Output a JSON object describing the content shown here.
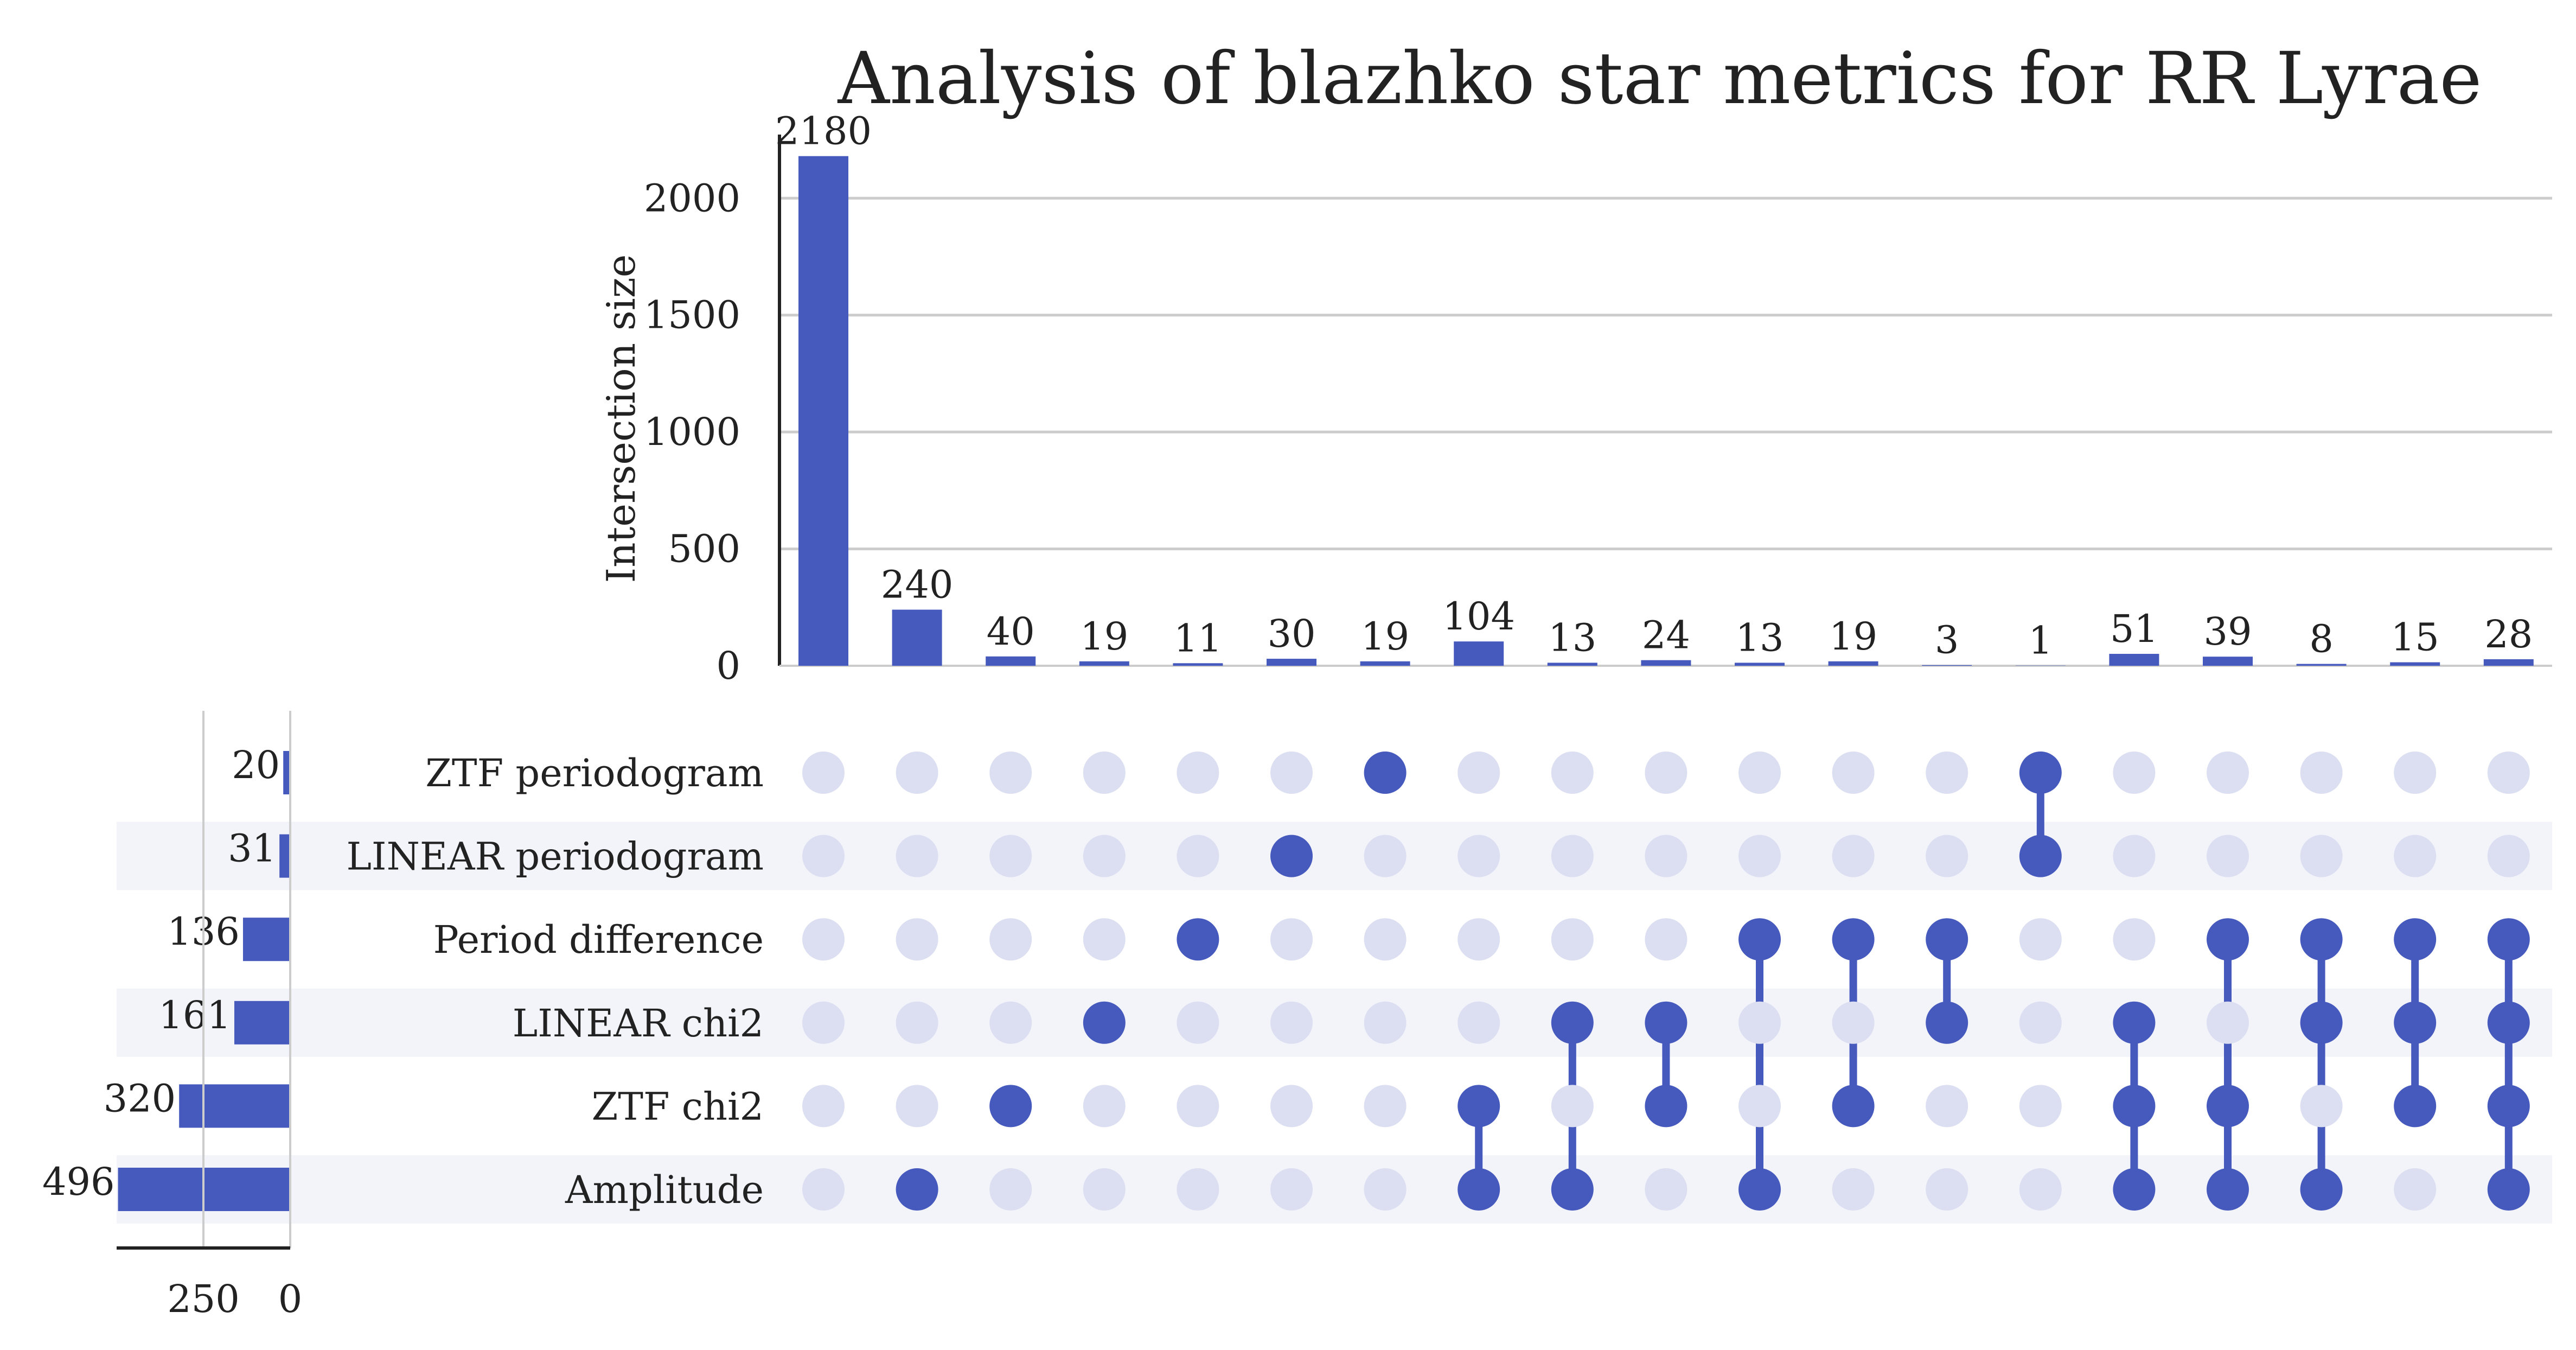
{
  "chart_data": {
    "type": "bar",
    "subtype": "upset",
    "title": "Analysis of blazhko star metrics for RR Lyrae",
    "intersections": {
      "ylabel": "Intersection size",
      "ylim": [
        0,
        2300
      ],
      "yticks": [
        0,
        500,
        1000,
        1500,
        2000
      ],
      "grid": true,
      "values": [
        2180,
        240,
        40,
        19,
        11,
        30,
        19,
        104,
        13,
        24,
        13,
        19,
        3,
        1,
        51,
        39,
        8,
        15,
        28
      ],
      "sets": [
        [],
        [
          "Amplitude"
        ],
        [
          "ZTF chi2"
        ],
        [
          "LINEAR chi2"
        ],
        [
          "Period difference"
        ],
        [
          "LINEAR periodogram"
        ],
        [
          "ZTF periodogram"
        ],
        [
          "ZTF chi2",
          "Amplitude"
        ],
        [
          "LINEAR chi2",
          "Amplitude"
        ],
        [
          "LINEAR chi2",
          "ZTF chi2"
        ],
        [
          "Period difference",
          "Amplitude"
        ],
        [
          "Period difference",
          "ZTF chi2"
        ],
        [
          "Period difference",
          "LINEAR chi2"
        ],
        [
          "ZTF periodogram",
          "LINEAR periodogram"
        ],
        [
          "LINEAR chi2",
          "ZTF chi2",
          "Amplitude"
        ],
        [
          "Period difference",
          "ZTF chi2",
          "Amplitude"
        ],
        [
          "Period difference",
          "LINEAR chi2",
          "Amplitude"
        ],
        [
          "Period difference",
          "LINEAR chi2",
          "ZTF chi2"
        ],
        [
          "Period difference",
          "LINEAR chi2",
          "ZTF chi2",
          "Amplitude"
        ]
      ]
    },
    "set_sizes": {
      "names": [
        "ZTF periodogram",
        "LINEAR periodogram",
        "Period difference",
        "LINEAR chi2",
        "ZTF chi2",
        "Amplitude"
      ],
      "values": [
        20,
        31,
        136,
        161,
        320,
        496
      ],
      "xticks": [
        250,
        0
      ],
      "xlim": [
        0,
        500
      ]
    },
    "colors": {
      "bar": "#4659bd",
      "dot_active": "#4659bd",
      "dot_inactive": "#dbdff1",
      "stripe": "#f3f4fa",
      "grid": "#cccccc",
      "axis": "#222222"
    }
  }
}
